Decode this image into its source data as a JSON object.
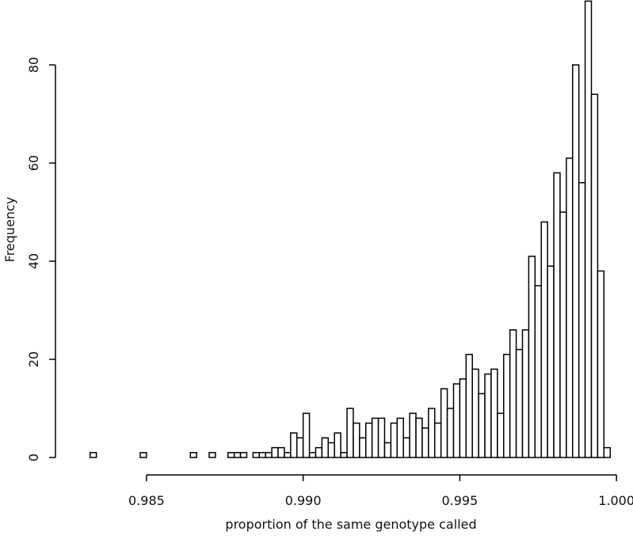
{
  "chart_data": {
    "type": "histogram",
    "xlabel": "proportion of the same genotype called",
    "ylabel": "Frequency",
    "bins": [
      0.9832,
      0.9834,
      0.9836,
      0.9838,
      0.984,
      0.9842,
      0.9844,
      0.9846,
      0.9848,
      0.985,
      0.9852,
      0.9854,
      0.9856,
      0.9858,
      0.986,
      0.9862,
      0.9864,
      0.9866,
      0.9868,
      0.987,
      0.9872,
      0.9874,
      0.9876,
      0.9878,
      0.988,
      0.9882,
      0.9884,
      0.9886,
      0.9888,
      0.989,
      0.9892,
      0.9894,
      0.9896,
      0.9898,
      0.99,
      0.9902,
      0.9904,
      0.9906,
      0.9908,
      0.991,
      0.9912,
      0.9914,
      0.9916,
      0.9918,
      0.992,
      0.9922,
      0.9924,
      0.9926,
      0.9928,
      0.993,
      0.9932,
      0.9934,
      0.9936,
      0.9938,
      0.994,
      0.9942,
      0.9944,
      0.9946,
      0.9948,
      0.995,
      0.9952,
      0.9954,
      0.9956,
      0.9958,
      0.996,
      0.9962,
      0.9964,
      0.9966,
      0.9968,
      0.997,
      0.9972,
      0.9974,
      0.9976,
      0.9978,
      0.998,
      0.9982,
      0.9984,
      0.9986,
      0.9988,
      0.999,
      0.9992,
      0.9994,
      0.9996,
      0.9998
    ],
    "counts": [
      1,
      0,
      0,
      0,
      0,
      0,
      0,
      0,
      1,
      0,
      0,
      0,
      0,
      0,
      0,
      0,
      1,
      0,
      0,
      1,
      0,
      0,
      1,
      1,
      1,
      0,
      1,
      1,
      1,
      2,
      2,
      1,
      5,
      4,
      9,
      1,
      2,
      4,
      3,
      5,
      1,
      10,
      7,
      4,
      7,
      8,
      8,
      3,
      7,
      8,
      4,
      9,
      8,
      6,
      10,
      7,
      14,
      10,
      15,
      16,
      21,
      18,
      13,
      17,
      18,
      9,
      21,
      26,
      22,
      26,
      41,
      35,
      48,
      39,
      58,
      50,
      61,
      80,
      56,
      93,
      74,
      38,
      2
    ],
    "color": "#ffffff",
    "xlim": [
      0.9826,
      1.0003
    ],
    "ylim": [
      0,
      93
    ],
    "xticks": [
      0.985,
      {
        "value": 0.99,
        "label": "0.990"
      },
      0.995,
      {
        "value": 1,
        "label": "1.000"
      }
    ],
    "yticks": [
      0,
      20,
      40,
      60,
      80
    ]
  }
}
